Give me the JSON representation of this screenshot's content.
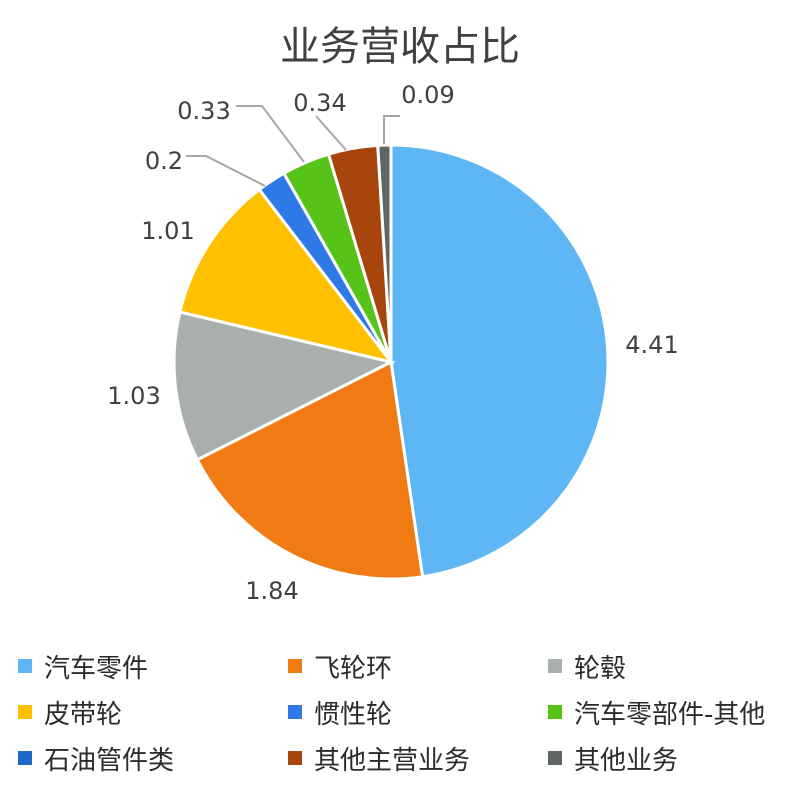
{
  "chart_data": {
    "type": "pie",
    "title": "业务营收占比",
    "slices": [
      {
        "name": "汽车零件",
        "value": 4.41,
        "label": "4.41",
        "color": "#5EB7F4"
      },
      {
        "name": "飞轮环",
        "value": 1.84,
        "label": "1.84",
        "color": "#F07B12"
      },
      {
        "name": "轮毂",
        "value": 1.03,
        "label": "1.03",
        "color": "#A8AFAD"
      },
      {
        "name": "皮带轮",
        "value": 1.01,
        "label": "1.01",
        "color": "#FFC000"
      },
      {
        "name": "惯性轮",
        "value": 0.2,
        "label": "0.2",
        "color": "#2E79E6"
      },
      {
        "name": "汽车零部件-其他",
        "value": 0.33,
        "label": "0.33",
        "color": "#57C319"
      },
      {
        "name": "石油管件类",
        "value": 0,
        "label": "",
        "color": "#1E66C7"
      },
      {
        "name": "其他主营业务",
        "value": 0.34,
        "label": "0.34",
        "color": "#A8450D"
      },
      {
        "name": "其他业务",
        "value": 0.09,
        "label": "0.09",
        "color": "#5F6765"
      }
    ],
    "legend_position": "bottom"
  }
}
